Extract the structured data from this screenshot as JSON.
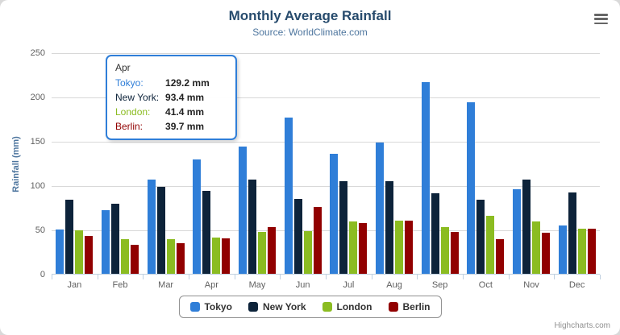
{
  "chart": {
    "title": "Monthly Average Rainfall",
    "subtitle": "Source: WorldClimate.com",
    "y_axis_title": "Rainfall (mm)",
    "credit": "Highcharts.com",
    "export_menu_icon": "hamburger-menu"
  },
  "chart_data": {
    "type": "bar",
    "title": "Monthly Average Rainfall",
    "subtitle": "Source: WorldClimate.com",
    "xlabel": "",
    "ylabel": "Rainfall (mm)",
    "ylim": [
      0,
      250
    ],
    "yticks": [
      0,
      50,
      100,
      150,
      200,
      250
    ],
    "grid": true,
    "legend_position": "bottom",
    "categories": [
      "Jan",
      "Feb",
      "Mar",
      "Apr",
      "May",
      "Jun",
      "Jul",
      "Aug",
      "Sep",
      "Oct",
      "Nov",
      "Dec"
    ],
    "series": [
      {
        "name": "Tokyo",
        "color": "#2f7ed8",
        "values": [
          49.9,
          71.5,
          106.4,
          129.2,
          144.0,
          176.0,
          135.6,
          148.5,
          216.4,
          194.1,
          95.6,
          54.4
        ]
      },
      {
        "name": "New York",
        "color": "#0d233a",
        "values": [
          83.6,
          78.8,
          98.5,
          93.4,
          106.0,
          84.5,
          105.0,
          104.3,
          91.2,
          83.5,
          106.6,
          92.3
        ]
      },
      {
        "name": "London",
        "color": "#8bbc21",
        "values": [
          48.9,
          38.8,
          39.3,
          41.4,
          47.0,
          48.3,
          59.0,
          59.6,
          52.4,
          65.2,
          59.3,
          51.2
        ]
      },
      {
        "name": "Berlin",
        "color": "#910000",
        "values": [
          42.4,
          33.2,
          34.5,
          39.7,
          52.6,
          75.5,
          57.4,
          60.4,
          47.6,
          39.1,
          46.8,
          51.1
        ]
      }
    ]
  },
  "tooltip": {
    "header": "Apr",
    "rows": [
      {
        "label": "Tokyo:",
        "value": "129.2 mm",
        "color": "#2f7ed8"
      },
      {
        "label": "New York:",
        "value": "93.4 mm",
        "color": "#0d233a"
      },
      {
        "label": "London:",
        "value": "41.4 mm",
        "color": "#8bbc21"
      },
      {
        "label": "Berlin:",
        "value": "39.7 mm",
        "color": "#910000"
      }
    ]
  }
}
